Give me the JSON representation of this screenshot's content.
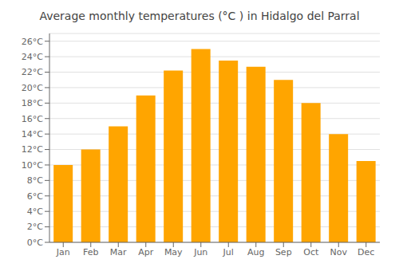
{
  "chart_data": {
    "type": "bar",
    "title": "Average monthly temperatures (°C ) in Hidalgo del Parral",
    "categories": [
      "Jan",
      "Feb",
      "Mar",
      "Apr",
      "May",
      "Jun",
      "Jul",
      "Aug",
      "Sep",
      "Oct",
      "Nov",
      "Dec"
    ],
    "values": [
      10.0,
      12.0,
      15.0,
      19.0,
      22.2,
      25.0,
      23.5,
      22.7,
      21.0,
      18.0,
      14.0,
      10.5
    ],
    "color": "#FFA500",
    "ylim": [
      0,
      27
    ],
    "yticks": [
      {
        "value": 0,
        "label": "0°C"
      },
      {
        "value": 2,
        "label": "2°C"
      },
      {
        "value": 4,
        "label": "4°C"
      },
      {
        "value": 6,
        "label": "6°C"
      },
      {
        "value": 8,
        "label": "8°C"
      },
      {
        "value": 10,
        "label": "10°C"
      },
      {
        "value": 12,
        "label": "12°C"
      },
      {
        "value": 14,
        "label": "14°C"
      },
      {
        "value": 16,
        "label": "16°C"
      },
      {
        "value": 18,
        "label": "18°C"
      },
      {
        "value": 20,
        "label": "20°C"
      },
      {
        "value": 22,
        "label": "22°C"
      },
      {
        "value": 24,
        "label": "24°C"
      },
      {
        "value": 26,
        "label": "26°C"
      }
    ],
    "grid": true
  }
}
